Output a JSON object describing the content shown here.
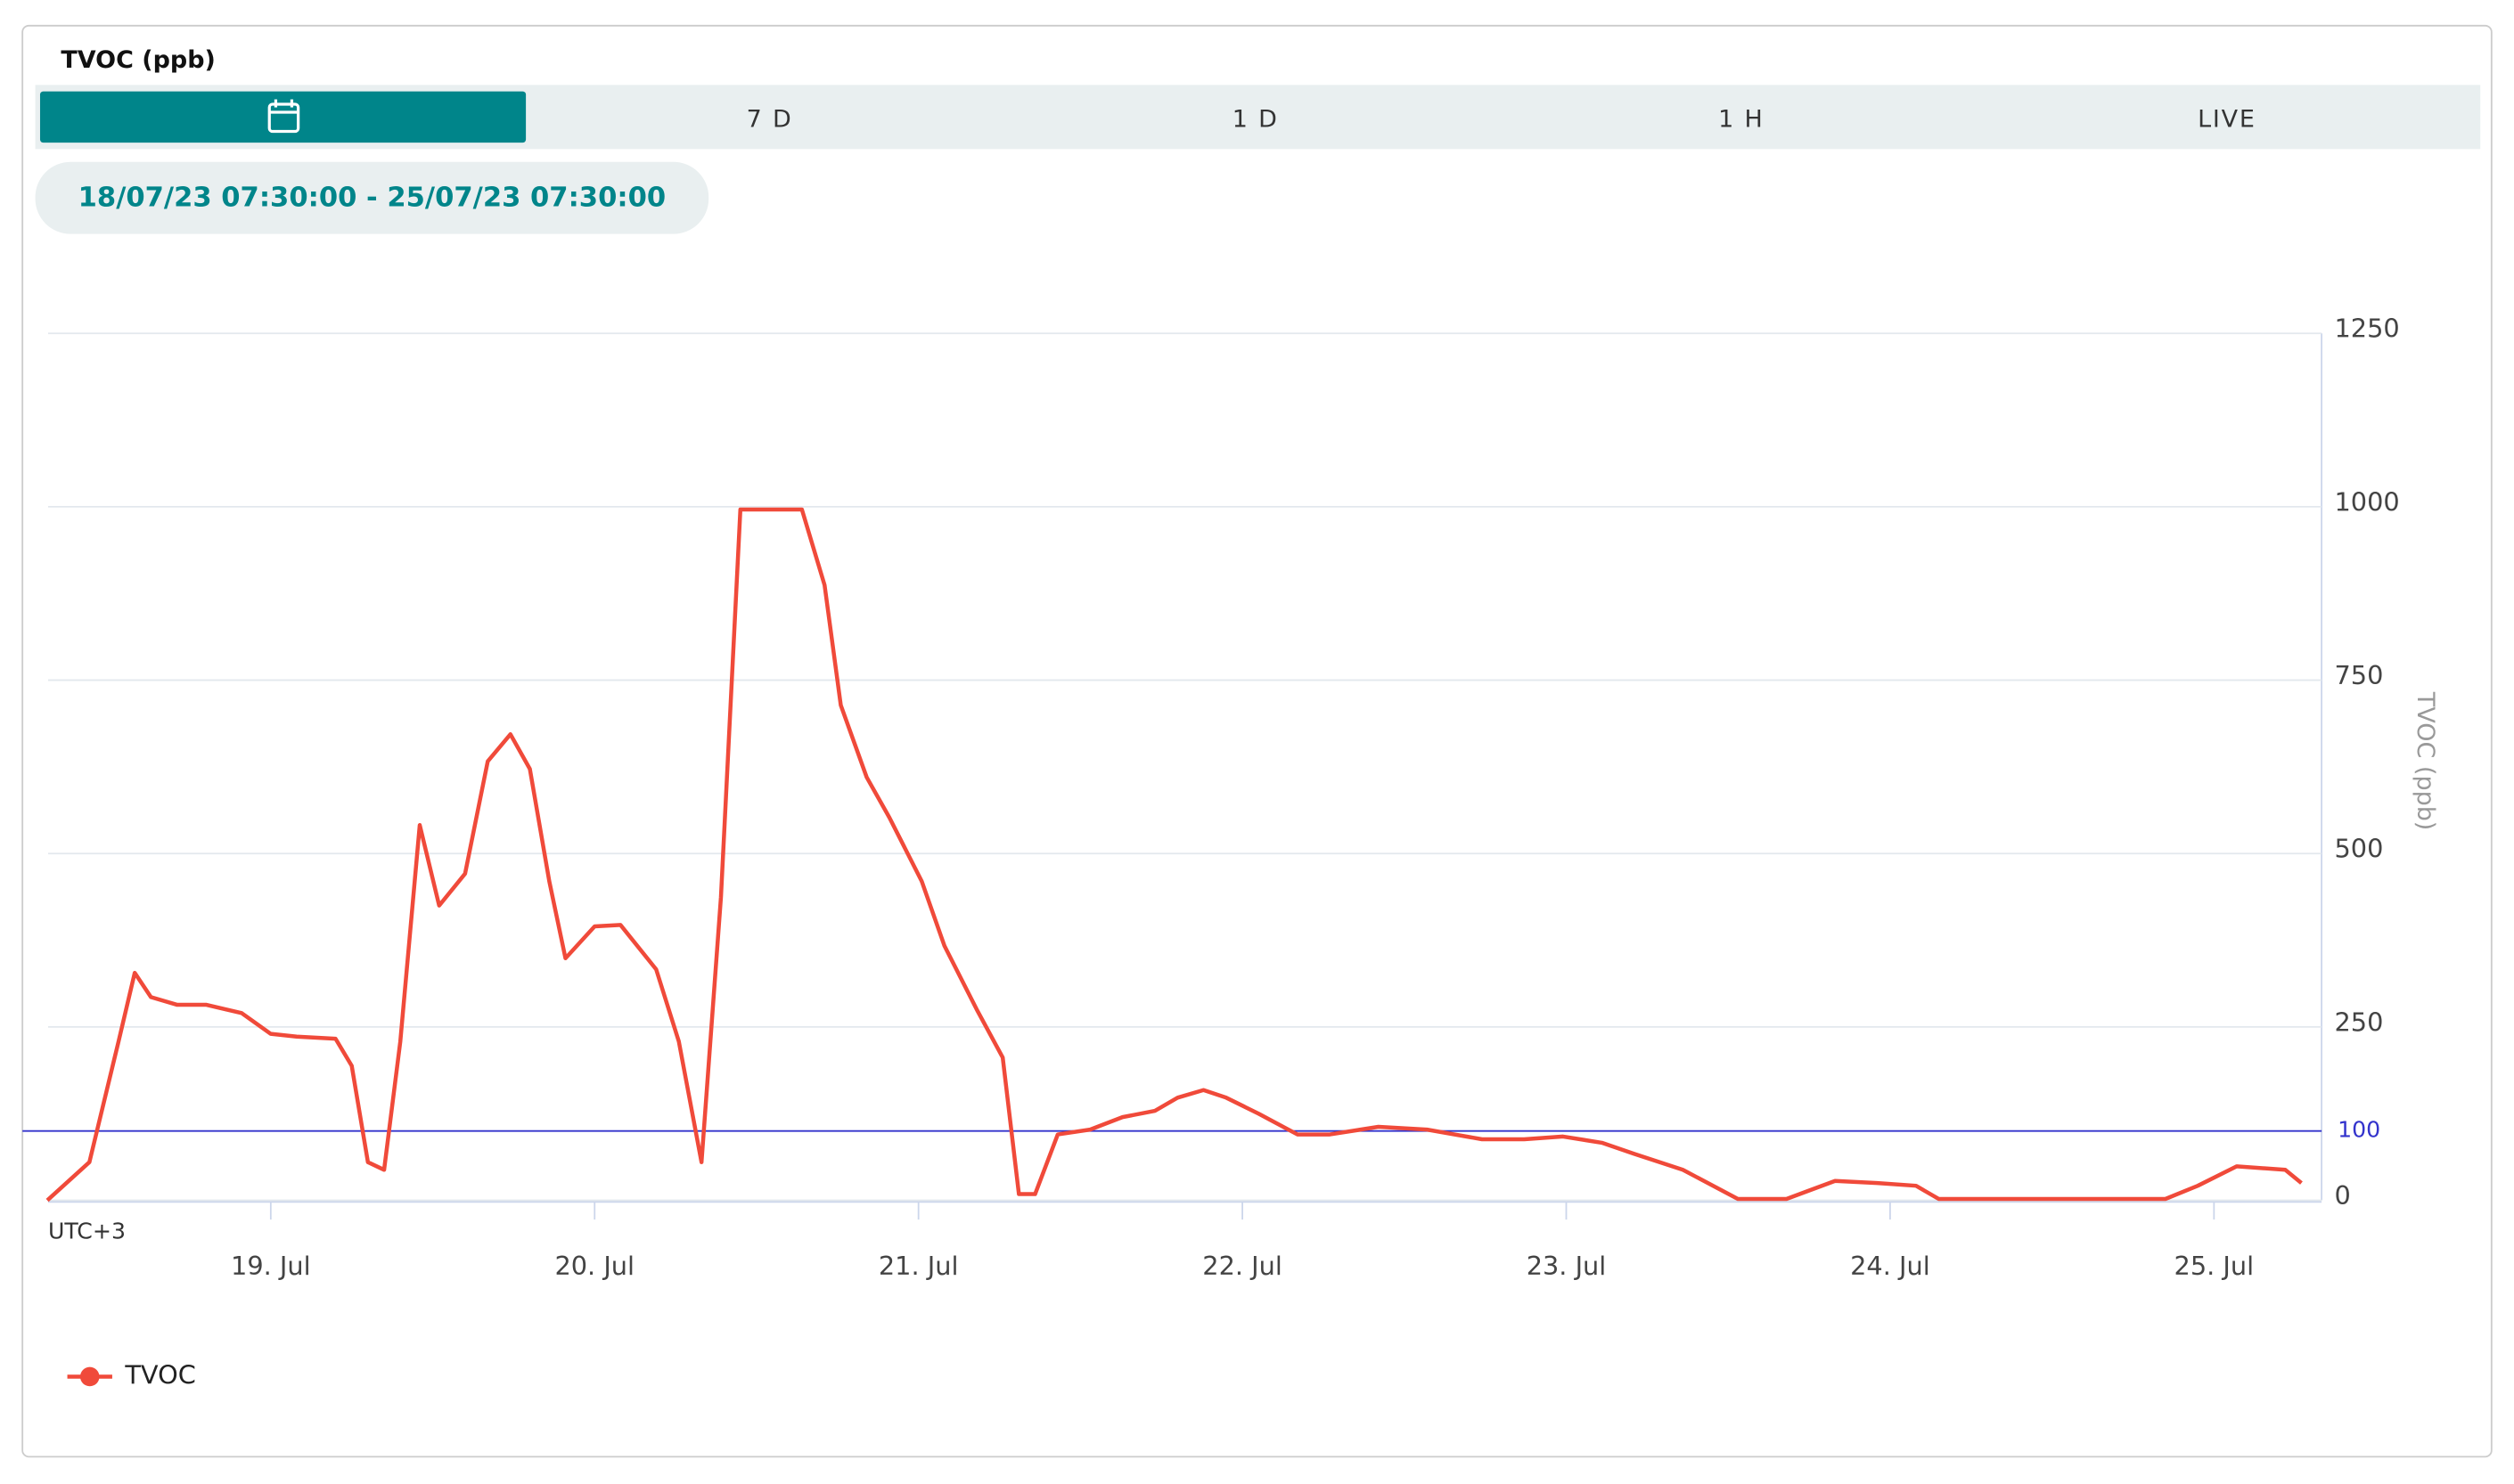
{
  "header": {
    "title": "TVOC (ppb)",
    "tabs": [
      "7 D",
      "1 D",
      "1 H",
      "LIVE"
    ],
    "date_range": "18/07/23 07:30:00 - 25/07/23 07:30:00"
  },
  "chart_data": {
    "type": "line",
    "timezone": "UTC+3",
    "y_axis_label": "TVOC (ppb)",
    "xlim": [
      18.3125,
      25.3125
    ],
    "xticks": [
      {
        "value": 19,
        "label": "19. Jul"
      },
      {
        "value": 20,
        "label": "20. Jul"
      },
      {
        "value": 21,
        "label": "21. Jul"
      },
      {
        "value": 22,
        "label": "22. Jul"
      },
      {
        "value": 23,
        "label": "23. Jul"
      },
      {
        "value": 24,
        "label": "24. Jul"
      },
      {
        "value": 25,
        "label": "25. Jul"
      }
    ],
    "ylim": [
      0,
      1250
    ],
    "yticks": [
      0,
      250,
      500,
      750,
      1000,
      1250
    ],
    "grid": true,
    "reference_line": {
      "value": 100,
      "color": "#3333cc"
    },
    "legend": "bottom-left",
    "x": [
      18.31,
      18.44,
      18.53,
      18.58,
      18.63,
      18.71,
      18.8,
      18.91,
      19.0,
      19.08,
      19.2,
      19.25,
      19.3,
      19.35,
      19.4,
      19.46,
      19.52,
      19.6,
      19.67,
      19.74,
      19.8,
      19.86,
      19.91,
      20.0,
      20.08,
      20.19,
      20.26,
      20.33,
      20.39,
      20.45,
      20.54,
      20.64,
      20.71,
      20.76,
      20.84,
      20.91,
      21.01,
      21.08,
      21.18,
      21.26,
      21.31,
      21.36,
      21.43,
      21.53,
      21.63,
      21.73,
      21.8,
      21.88,
      21.95,
      22.05,
      22.17,
      22.27,
      22.42,
      22.57,
      22.74,
      22.87,
      22.99,
      23.11,
      23.21,
      23.36,
      23.53,
      23.68,
      23.83,
      23.96,
      24.08,
      24.15,
      24.45,
      24.5,
      24.85,
      24.95,
      25.07,
      25.22,
      25.27
    ],
    "series": [
      {
        "name": "TVOC",
        "color": "#f04a3a",
        "values": [
          0,
          55,
          229,
          328,
          293,
          282,
          282,
          270,
          240,
          236,
          233,
          194,
          55,
          44,
          229,
          541,
          425,
          471,
          633,
          672,
          622,
          460,
          349,
          395,
          397,
          333,
          229,
          55,
          437,
          996,
          996,
          996,
          887,
          714,
          610,
          552,
          460,
          367,
          275,
          206,
          9,
          9,
          95,
          102,
          120,
          129,
          148,
          159,
          148,
          125,
          95,
          95,
          106,
          102,
          88,
          88,
          92,
          83,
          67,
          44,
          2,
          2,
          28,
          25,
          21,
          2,
          2,
          2,
          2,
          21,
          49,
          44,
          25
        ]
      }
    ]
  }
}
